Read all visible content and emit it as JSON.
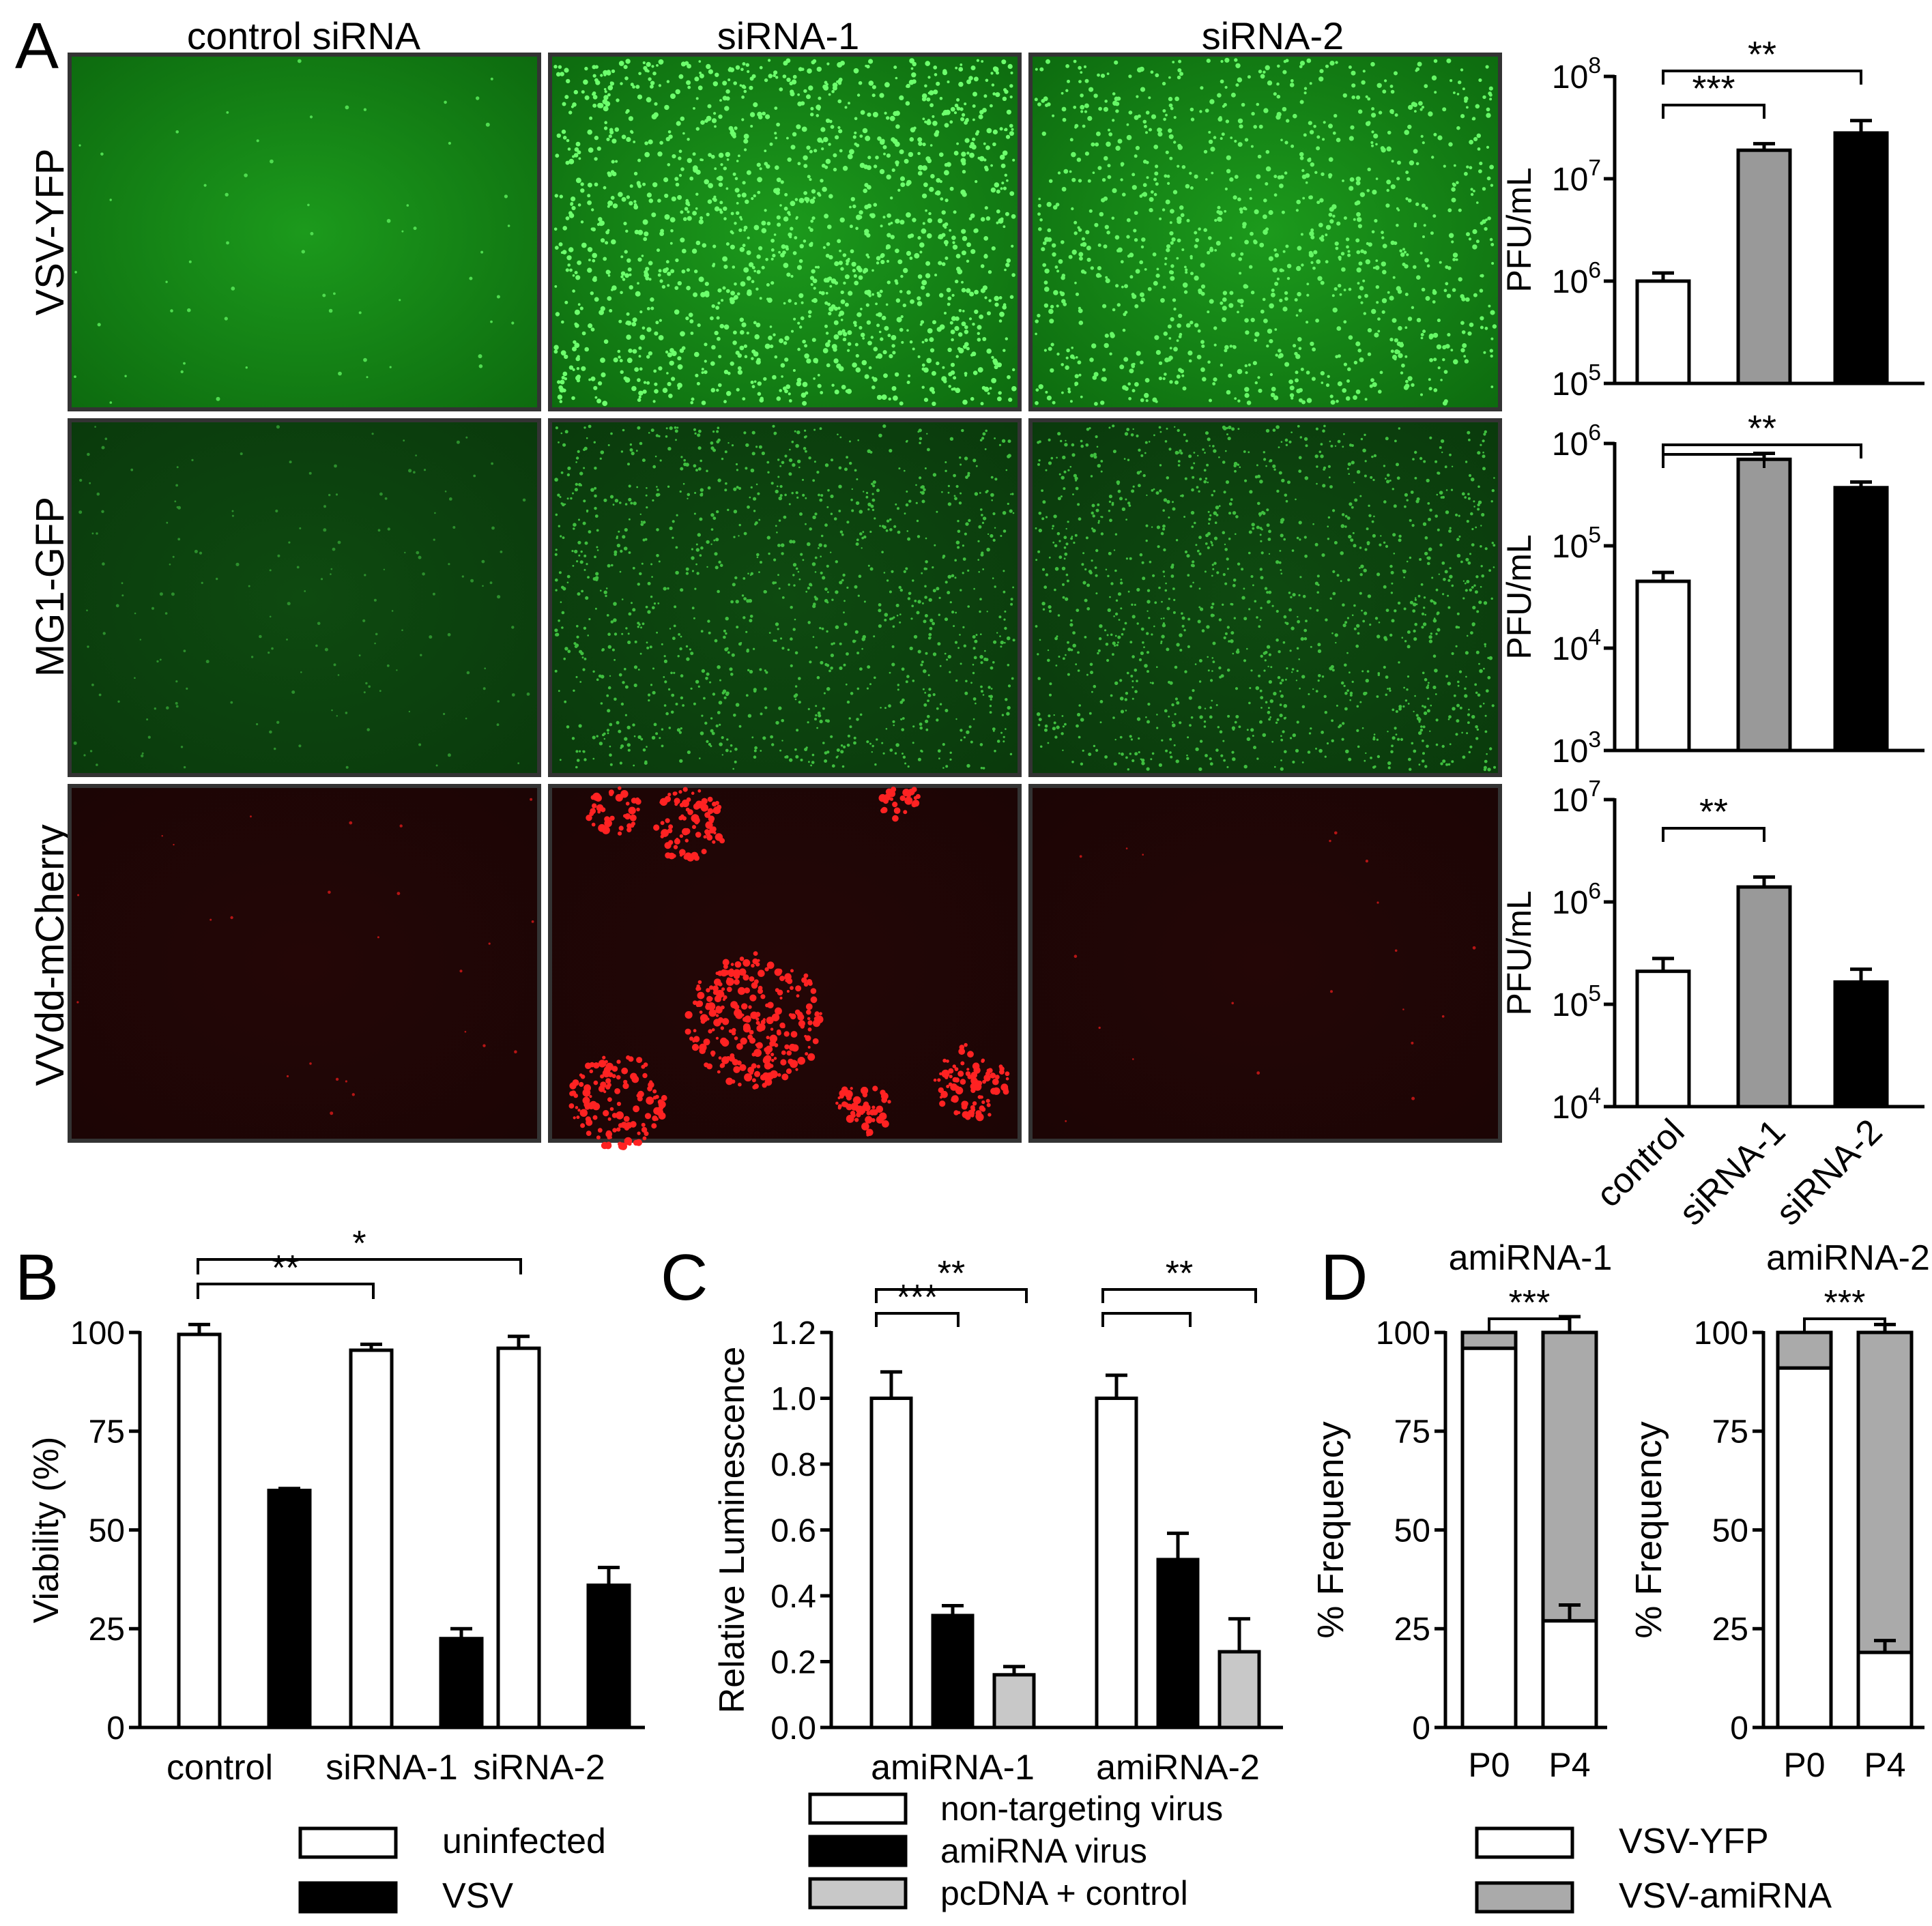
{
  "panels": {
    "A": "A",
    "B": "B",
    "C": "C",
    "D": "D"
  },
  "micrographs": {
    "columns": [
      "control siRNA",
      "siRNA-1",
      "siRNA-2"
    ],
    "rows": [
      "VSV-YFP",
      "MG1-GFP",
      "VVdd-mCherry"
    ]
  },
  "chart_data": [
    {
      "id": "A1",
      "type": "bar",
      "ylabel": "PFU/mL",
      "yscale": "log",
      "ylim": [
        100000,
        100000000
      ],
      "yticks": [
        "10^5",
        "10^6",
        "10^7",
        "10^8"
      ],
      "categories": [
        "control",
        "siRNA-1",
        "siRNA-2"
      ],
      "values": [
        1000000,
        19000000,
        28000000
      ],
      "errors": [
        1200000,
        22000000,
        37000000
      ],
      "fills": [
        "#ffffff",
        "#999999",
        "#000000"
      ],
      "significance": [
        {
          "a": 0,
          "b": 1,
          "label": "***"
        },
        {
          "a": 0,
          "b": 2,
          "label": "**"
        }
      ]
    },
    {
      "id": "A2",
      "type": "bar",
      "ylabel": "PFU/mL",
      "yscale": "log",
      "ylim": [
        1000,
        1000000
      ],
      "yticks": [
        "10^3",
        "10^4",
        "10^5",
        "10^6"
      ],
      "categories": [
        "control",
        "siRNA-1",
        "siRNA-2"
      ],
      "values": [
        45000,
        700000,
        370000
      ],
      "errors": [
        55000,
        800000,
        420000
      ],
      "fills": [
        "#ffffff",
        "#999999",
        "#000000"
      ],
      "significance": [
        {
          "a": 0,
          "b": 1,
          "label": ""
        },
        {
          "a": 0,
          "b": 2,
          "label": "**"
        }
      ]
    },
    {
      "id": "A3",
      "type": "bar",
      "ylabel": "PFU/mL",
      "yscale": "log",
      "ylim": [
        10000,
        10000000
      ],
      "yticks": [
        "10^4",
        "10^5",
        "10^6",
        "10^7"
      ],
      "categories": [
        "control",
        "siRNA-1",
        "siRNA-2"
      ],
      "values": [
        210000,
        1400000,
        165000
      ],
      "errors": [
        280000,
        1750000,
        220000
      ],
      "fills": [
        "#ffffff",
        "#999999",
        "#000000"
      ],
      "significance": [
        {
          "a": 0,
          "b": 1,
          "label": "**"
        }
      ]
    },
    {
      "id": "B",
      "type": "bar",
      "ylabel": "Viability (%)",
      "ylim": [
        0,
        100
      ],
      "yticks": [
        "0",
        "25",
        "50",
        "75",
        "100"
      ],
      "categories": [
        "control",
        "siRNA-1",
        "siRNA-2"
      ],
      "series": [
        {
          "name": "uninfected",
          "values": [
            99.5,
            95.5,
            96
          ],
          "errors": [
            2.5,
            1.5,
            3
          ],
          "fill": "#ffffff"
        },
        {
          "name": "VSV",
          "values": [
            60,
            22.5,
            36
          ],
          "errors": [
            0.5,
            2.5,
            4.5
          ],
          "fill": "#000000"
        }
      ],
      "significance": [
        {
          "a": 0,
          "b": 1,
          "label": "**"
        },
        {
          "a": 0,
          "b": 2,
          "label": "*"
        }
      ]
    },
    {
      "id": "C",
      "type": "bar",
      "ylabel": "Relative Luminescence",
      "ylim": [
        0,
        1.2
      ],
      "yticks": [
        "0.0",
        "0.2",
        "0.4",
        "0.6",
        "0.8",
        "1.0",
        "1.2"
      ],
      "categories": [
        "amiRNA-1",
        "amiRNA-2"
      ],
      "series": [
        {
          "name": "non-targeting virus",
          "values": [
            1.0,
            1.0
          ],
          "errors": [
            0.08,
            0.07
          ],
          "fill": "#ffffff"
        },
        {
          "name": "amiRNA virus",
          "values": [
            0.34,
            0.51
          ],
          "errors": [
            0.03,
            0.08
          ],
          "fill": "#000000"
        },
        {
          "name": "pcDNA + control",
          "values": [
            0.16,
            0.23
          ],
          "errors": [
            0.025,
            0.1
          ],
          "fill": "#c8c8c8"
        }
      ],
      "significance": [
        {
          "group": 0,
          "a": 0,
          "b": 1,
          "label": "***"
        },
        {
          "group": 0,
          "a": 0,
          "b": 2,
          "label": "**"
        },
        {
          "group": 1,
          "a": 0,
          "b": 1,
          "label": ""
        },
        {
          "group": 1,
          "a": 0,
          "b": 2,
          "label": "**"
        }
      ]
    },
    {
      "id": "D1",
      "type": "bar",
      "stacked": true,
      "title": "amiRNA-1",
      "ylabel": "% Frequency",
      "ylim": [
        0,
        100
      ],
      "yticks": [
        "0",
        "25",
        "50",
        "75",
        "100"
      ],
      "categories": [
        "P0",
        "P4"
      ],
      "series": [
        {
          "name": "VSV-YFP",
          "values": [
            96,
            27
          ],
          "fill": "#ffffff"
        },
        {
          "name": "VSV-amiRNA",
          "values": [
            4,
            73
          ],
          "fill": "#aaaaaa"
        }
      ],
      "errors": [
        {
          "bar": 1,
          "level": 27,
          "err": 4
        },
        {
          "bar": 1,
          "level": 100,
          "err": 4
        }
      ],
      "significance": [
        {
          "a": 0,
          "b": 1,
          "label": "***"
        }
      ]
    },
    {
      "id": "D2",
      "type": "bar",
      "stacked": true,
      "title": "amiRNA-2",
      "ylabel": "% Frequency",
      "ylim": [
        0,
        100
      ],
      "yticks": [
        "0",
        "25",
        "50",
        "75",
        "100"
      ],
      "categories": [
        "P0",
        "P4"
      ],
      "series": [
        {
          "name": "VSV-YFP",
          "values": [
            91,
            19
          ],
          "fill": "#ffffff"
        },
        {
          "name": "VSV-amiRNA",
          "values": [
            9,
            81
          ],
          "fill": "#aaaaaa"
        }
      ],
      "errors": [
        {
          "bar": 1,
          "level": 19,
          "err": 3
        },
        {
          "bar": 1,
          "level": 100,
          "err": 2
        }
      ],
      "significance": [
        {
          "a": 0,
          "b": 1,
          "label": "***"
        }
      ]
    }
  ]
}
